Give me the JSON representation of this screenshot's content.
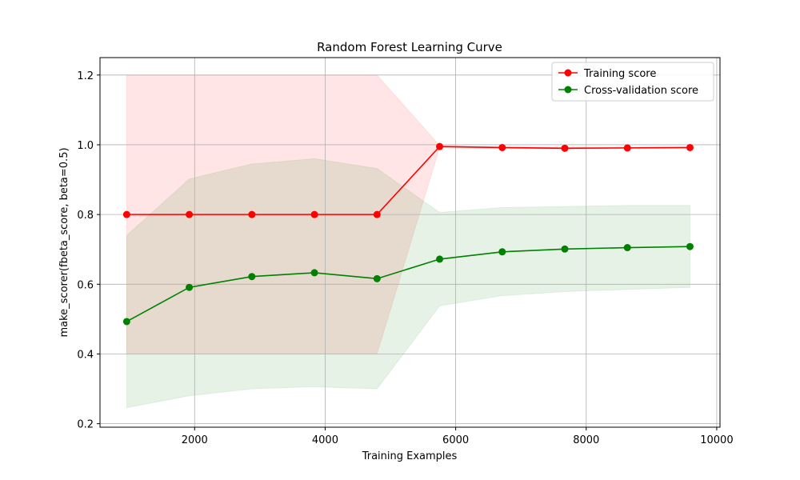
{
  "chart_data": {
    "type": "line",
    "title": "Random Forest Learning Curve",
    "xlabel": "Training Examples",
    "ylabel": "make_scorer(fbeta_score, beta=0.5)",
    "xlim": [
      550,
      10050
    ],
    "ylim": [
      0.19,
      1.25
    ],
    "xticks": [
      2000,
      4000,
      6000,
      8000,
      10000
    ],
    "yticks": [
      0.2,
      0.4,
      0.6,
      0.8,
      1.0,
      1.2
    ],
    "ytick_labels": [
      "0.2",
      "0.4",
      "0.6",
      "0.8",
      "1.0",
      "1.2"
    ],
    "grid": true,
    "legend_position": "top-right",
    "x": [
      959,
      1918,
      2877,
      3836,
      4795,
      5754,
      6713,
      7672,
      8631,
      9590
    ],
    "series": [
      {
        "name": "Training score",
        "color": "#ff0000",
        "band_color": "#ffcccc",
        "values": [
          0.8,
          0.8,
          0.8,
          0.8,
          0.8,
          0.995,
          0.992,
          0.99,
          0.991,
          0.992
        ],
        "band_upper": [
          1.2,
          1.2,
          1.2,
          1.2,
          1.2,
          0.998,
          0.994,
          0.993,
          0.993,
          0.994
        ],
        "band_lower": [
          0.4,
          0.4,
          0.4,
          0.4,
          0.4,
          0.992,
          0.99,
          0.987,
          0.989,
          0.99
        ]
      },
      {
        "name": "Cross-validation score",
        "color": "#008000",
        "band_color": "#c8e6c8",
        "values": [
          0.493,
          0.591,
          0.622,
          0.633,
          0.616,
          0.672,
          0.693,
          0.701,
          0.705,
          0.708
        ],
        "band_upper": [
          0.74,
          0.902,
          0.945,
          0.96,
          0.932,
          0.806,
          0.82,
          0.823,
          0.826,
          0.826
        ],
        "band_lower": [
          0.246,
          0.28,
          0.3,
          0.306,
          0.3,
          0.538,
          0.567,
          0.579,
          0.585,
          0.591
        ]
      }
    ]
  }
}
